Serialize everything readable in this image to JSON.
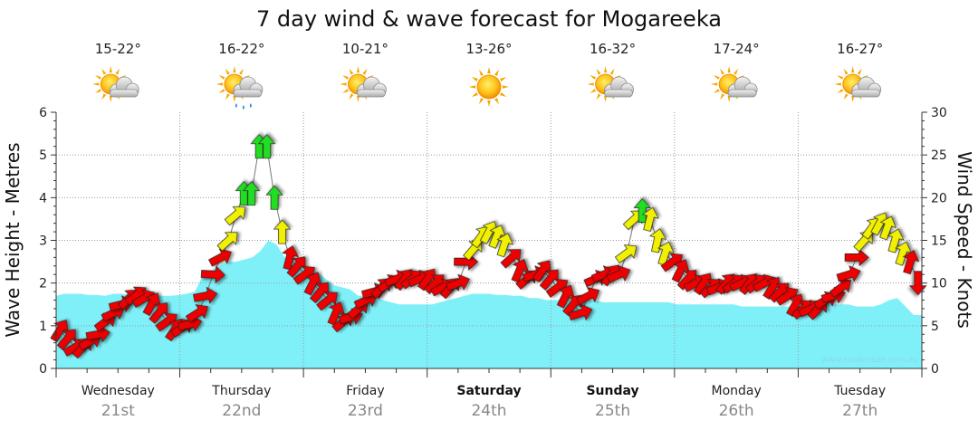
{
  "chart_data": {
    "type": "area",
    "title": "7 day wind & wave forecast for Mogareeka",
    "ylabel_left": "Wave Height - Metres",
    "ylabel_right": "Wind Speed - Knots",
    "ylim_left": [
      0,
      6
    ],
    "ylim_right": [
      0,
      30
    ],
    "left_ticks": [
      "0",
      "1",
      "2",
      "3",
      "4",
      "5",
      "6"
    ],
    "right_ticks": [
      "0",
      "5",
      "10",
      "15",
      "20",
      "25",
      "30"
    ],
    "credit": "www.seabreeze.com.au",
    "days": [
      {
        "name": "Wednesday",
        "date": "21st",
        "temp": "15-22°",
        "weather": "partly-cloudy",
        "bold": false
      },
      {
        "name": "Thursday",
        "date": "22nd",
        "temp": "16-22°",
        "weather": "showers",
        "bold": false
      },
      {
        "name": "Friday",
        "date": "23rd",
        "temp": "10-21°",
        "weather": "partly-cloudy",
        "bold": false
      },
      {
        "name": "Saturday",
        "date": "24th",
        "temp": "13-26°",
        "weather": "sunny",
        "bold": true
      },
      {
        "name": "Sunday",
        "date": "25th",
        "temp": "16-32°",
        "weather": "partly-cloudy",
        "bold": true
      },
      {
        "name": "Monday",
        "date": "26th",
        "temp": "17-24°",
        "weather": "partly-cloudy",
        "bold": false
      },
      {
        "name": "Tuesday",
        "date": "27th",
        "temp": "16-27°",
        "weather": "partly-cloudy",
        "bold": false
      }
    ],
    "wave_height_m": [
      1.7,
      1.75,
      1.75,
      1.75,
      1.72,
      1.72,
      1.7,
      1.75,
      1.75,
      1.72,
      1.72,
      1.72,
      1.72,
      1.7,
      1.7,
      1.72,
      1.75,
      1.8,
      2.2,
      2.3,
      2.4,
      2.5,
      2.5,
      2.55,
      2.6,
      2.75,
      3.0,
      2.9,
      2.6,
      2.5,
      2.45,
      2.35,
      2.25,
      2.1,
      1.95,
      1.9,
      1.85,
      1.7,
      1.7,
      1.65,
      1.6,
      1.55,
      1.5,
      1.5,
      1.5,
      1.5,
      1.5,
      1.55,
      1.6,
      1.65,
      1.7,
      1.75,
      1.75,
      1.75,
      1.72,
      1.72,
      1.7,
      1.7,
      1.65,
      1.65,
      1.6,
      1.6,
      1.6,
      1.6,
      1.6,
      1.6,
      1.6,
      1.55,
      1.55,
      1.55,
      1.55,
      1.55,
      1.55,
      1.55,
      1.55,
      1.55,
      1.5,
      1.5,
      1.5,
      1.5,
      1.5,
      1.5,
      1.5,
      1.5,
      1.45,
      1.45,
      1.45,
      1.45,
      1.45,
      1.45,
      1.45,
      1.45,
      1.5,
      1.5,
      1.5,
      1.5,
      1.5,
      1.5,
      1.45,
      1.45,
      1.45,
      1.5,
      1.6,
      1.65,
      1.45,
      1.25,
      1.25
    ],
    "wind_knots": [
      4.5,
      3.5,
      2.5,
      2.5,
      3.2,
      4.0,
      5.5,
      6.5,
      7.5,
      8.2,
      8.6,
      8.2,
      7.6,
      6.6,
      5.5,
      4.6,
      4.8,
      5.2,
      6.5,
      8.5,
      11,
      13,
      15,
      18,
      20.5,
      20.5,
      26,
      26,
      20,
      16,
      13,
      12,
      11,
      10,
      9,
      8,
      6.5,
      5.5,
      6,
      7,
      8,
      9,
      9.5,
      10,
      10.5,
      10.5,
      10.5,
      10.5,
      10.5,
      10,
      9.5,
      9.5,
      10,
      12.5,
      14,
      15.5,
      16,
      15.5,
      14.5,
      13,
      11.5,
      10.5,
      11,
      11.5,
      10.5,
      9.5,
      8.5,
      7.5,
      6.5,
      8.5,
      10.5,
      11,
      11,
      11,
      13.5,
      17.5,
      18.5,
      17.5,
      15,
      13.5,
      12.5,
      11.5,
      10.5,
      10,
      10,
      9.5,
      9.5,
      10,
      10,
      10,
      10,
      10,
      10,
      9.5,
      9,
      8.5,
      7.5,
      7,
      7,
      7,
      8,
      8.5,
      9.5,
      11,
      13,
      15,
      16.5,
      17,
      16.5,
      15,
      13.5,
      12.5,
      10
    ]
  }
}
